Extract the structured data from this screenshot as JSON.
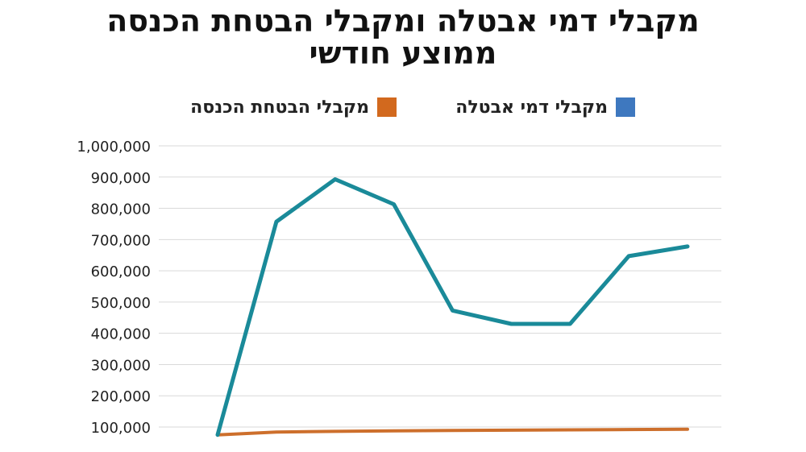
{
  "chart_data": {
    "type": "line",
    "title_lines": [
      "מקבלי דמי אבטלה ומקבלי הבטחת הכנסה",
      "ממוצע חודשי"
    ],
    "xlabel": "",
    "ylabel": "",
    "ylim": [
      100000,
      1000000
    ],
    "yticks": [
      1000000,
      900000,
      800000,
      700000,
      600000,
      500000,
      400000,
      300000,
      200000,
      100000
    ],
    "ytick_labels": [
      "1,000,000",
      "900,000",
      "800,000",
      "700,000",
      "600,000",
      "500,000",
      "400,000",
      "300,000",
      "200,000",
      "100,000"
    ],
    "grid": true,
    "legend_position": "top",
    "series": [
      {
        "name": "מקבלי דמי אבטלה",
        "legend_color": "#3e78bf",
        "line_color": "#1a8a99",
        "values": [
          75000,
          757000,
          893000,
          813000,
          473000,
          430000,
          430000,
          647000,
          678000
        ]
      },
      {
        "name": "מקבלי הבטחת הכנסה",
        "legend_color": "#d2691e",
        "line_color": "#cd6f2c",
        "values": [
          75000,
          84000,
          86000,
          88000,
          89000,
          90000,
          91000,
          92000,
          93000
        ]
      }
    ]
  }
}
